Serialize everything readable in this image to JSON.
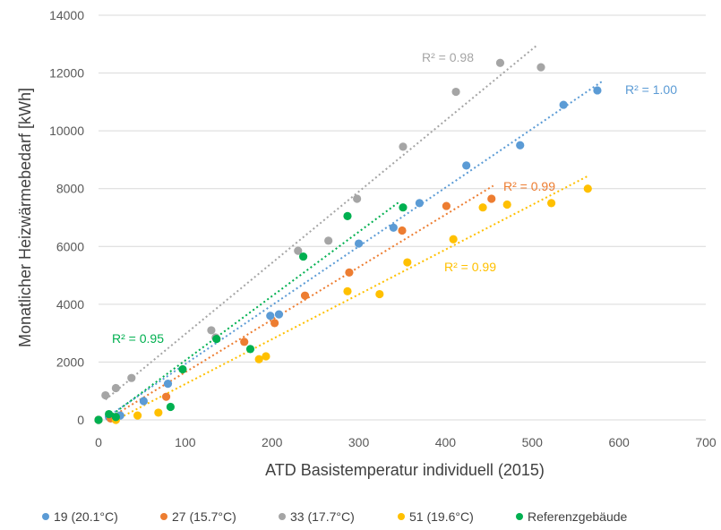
{
  "chart_data": {
    "type": "scatter",
    "xlabel": "ATD Basistemperatur individuell (2015)",
    "ylabel": "Monatlicher Heizwärmebedarf [kWh]",
    "xlim": [
      0,
      700
    ],
    "ylim": [
      0,
      14000
    ],
    "xticks": [
      "0",
      "100",
      "200",
      "300",
      "400",
      "500",
      "600",
      "700"
    ],
    "yticks": [
      "0",
      "2000",
      "4000",
      "6000",
      "8000",
      "10000",
      "12000",
      "14000"
    ],
    "grid": "horizontal",
    "legend_position": "bottom",
    "series": [
      {
        "name": "19 (20.1°C)",
        "color": "#5B9BD5",
        "points": [
          [
            0,
            0
          ],
          [
            12,
            100
          ],
          [
            25,
            150
          ],
          [
            52,
            650
          ],
          [
            80,
            1250
          ],
          [
            198,
            3600
          ],
          [
            208,
            3650
          ],
          [
            300,
            6100
          ],
          [
            340,
            6650
          ],
          [
            370,
            7500
          ],
          [
            424,
            8800
          ],
          [
            486,
            9500
          ],
          [
            536,
            10900
          ],
          [
            575,
            11400
          ]
        ],
        "trend": {
          "x": [
            10,
            580
          ],
          "y": [
            100,
            11700
          ]
        },
        "r2_label": "R² = 1.00"
      },
      {
        "name": "27 (15.7°C)",
        "color": "#ED7D31",
        "points": [
          [
            0,
            0
          ],
          [
            14,
            50
          ],
          [
            78,
            800
          ],
          [
            168,
            2700
          ],
          [
            203,
            3350
          ],
          [
            238,
            4300
          ],
          [
            289,
            5100
          ],
          [
            350,
            6550
          ],
          [
            401,
            7400
          ],
          [
            453,
            7650
          ]
        ],
        "trend": {
          "x": [
            12,
            455
          ],
          "y": [
            50,
            8100
          ]
        },
        "r2_label": "R² = 0.99"
      },
      {
        "name": "33 (17.7°C)",
        "color": "#A5A5A5",
        "points": [
          [
            8,
            850
          ],
          [
            20,
            1100
          ],
          [
            38,
            1450
          ],
          [
            130,
            3100
          ],
          [
            135,
            2850
          ],
          [
            230,
            5850
          ],
          [
            265,
            6200
          ],
          [
            298,
            7650
          ],
          [
            351,
            9450
          ],
          [
            412,
            11350
          ],
          [
            463,
            12350
          ],
          [
            510,
            12200
          ]
        ],
        "trend": {
          "x": [
            8,
            505
          ],
          "y": [
            700,
            12950
          ]
        },
        "r2_label": "R² = 0.98"
      },
      {
        "name": "51 (19.6°C)",
        "color": "#FFC000",
        "points": [
          [
            20,
            0
          ],
          [
            45,
            150
          ],
          [
            69,
            250
          ],
          [
            185,
            2100
          ],
          [
            193,
            2200
          ],
          [
            287,
            4450
          ],
          [
            324,
            4350
          ],
          [
            356,
            5450
          ],
          [
            409,
            6250
          ],
          [
            443,
            7350
          ],
          [
            471,
            7450
          ],
          [
            522,
            7500
          ],
          [
            564,
            8000
          ]
        ],
        "trend": {
          "x": [
            20,
            565
          ],
          "y": [
            0,
            8450
          ]
        },
        "r2_label": "R² = 0.99"
      },
      {
        "name": "Referenzgebäude",
        "color": "#00B050",
        "points": [
          [
            0,
            0
          ],
          [
            12,
            200
          ],
          [
            20,
            100
          ],
          [
            83,
            450
          ],
          [
            97,
            1750
          ],
          [
            136,
            2800
          ],
          [
            175,
            2450
          ],
          [
            236,
            5650
          ],
          [
            287,
            7050
          ],
          [
            351,
            7350
          ]
        ],
        "trend": {
          "x": [
            12,
            347
          ],
          "y": [
            100,
            7550
          ]
        },
        "r2_label": "R² = 0.95"
      }
    ]
  }
}
